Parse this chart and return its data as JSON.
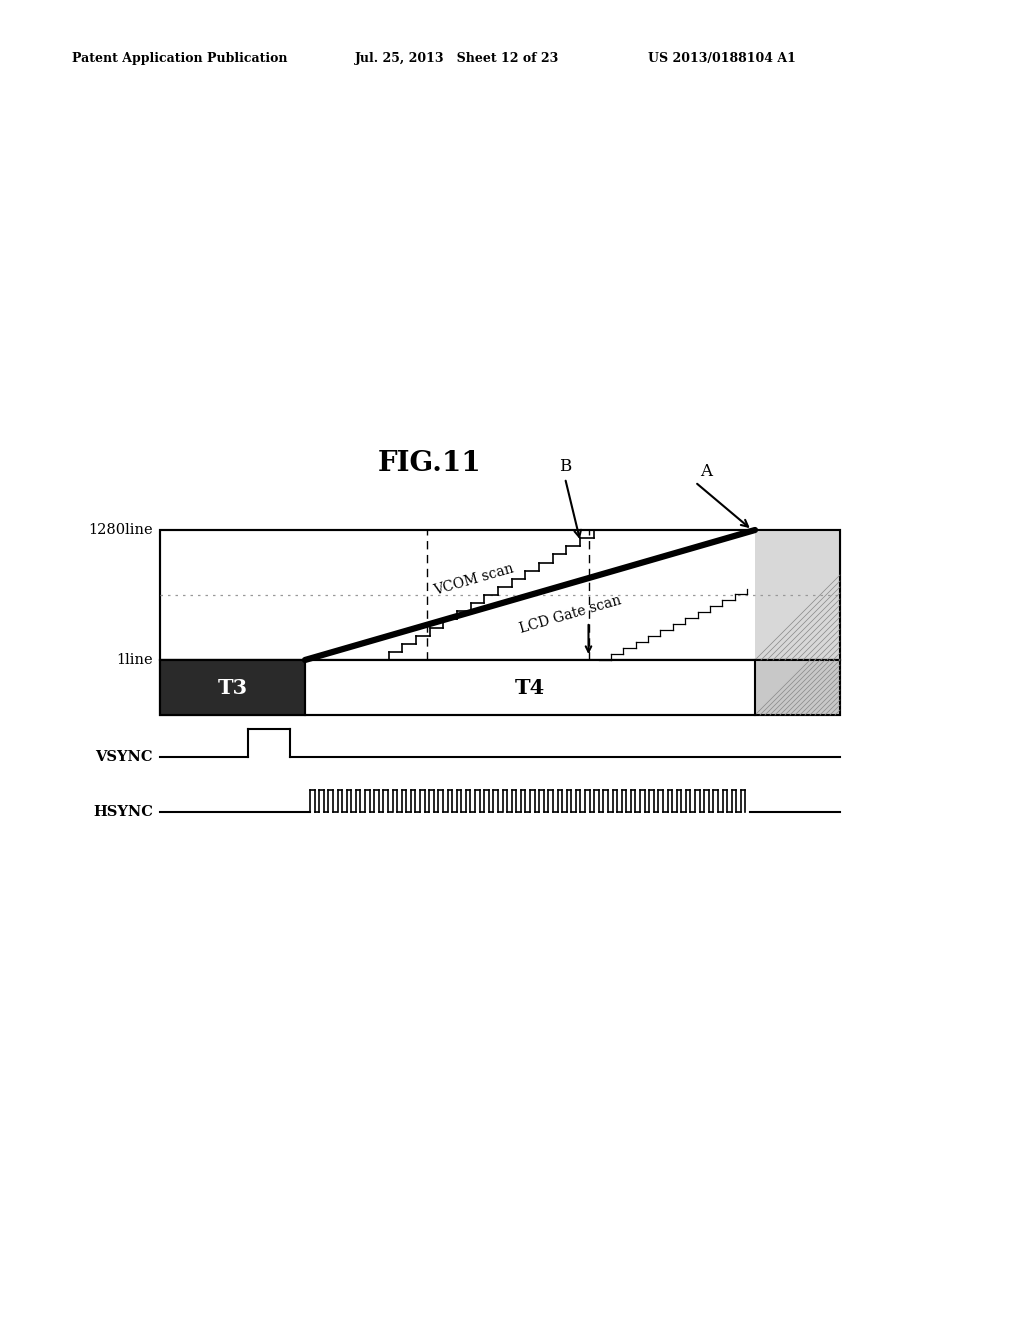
{
  "patent_header_left": "Patent Application Publication",
  "patent_header_mid": "Jul. 25, 2013   Sheet 12 of 23",
  "patent_header_right": "US 2013/0188104 A1",
  "fig_title": "FIG.11",
  "label_1280line": "1280line",
  "label_1line": "1line",
  "label_T3": "T3",
  "label_T4": "T4",
  "label_VSYNC": "VSYNC",
  "label_HSYNC": "HSYNC",
  "label_A": "A",
  "label_B": "B",
  "label_vcom": "VCOM scan",
  "label_lcd": "LCD Gate scan",
  "bg_color": "#ffffff"
}
